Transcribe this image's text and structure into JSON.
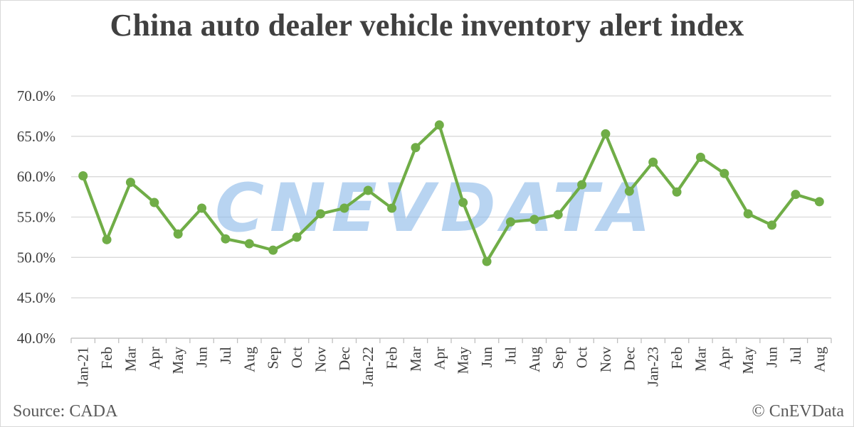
{
  "chart_data": {
    "type": "line",
    "title": "China auto dealer vehicle inventory alert index",
    "xlabel": "",
    "ylabel": "",
    "categories": [
      "Jan-21",
      "Feb",
      "Mar",
      "Apr",
      "May",
      "Jun",
      "Jul",
      "Aug",
      "Sep",
      "Oct",
      "Nov",
      "Dec",
      "Jan-22",
      "Feb",
      "Mar",
      "Apr",
      "May",
      "Jun",
      "Jul",
      "Aug",
      "Sep",
      "Oct",
      "Nov",
      "Dec",
      "Jan-23",
      "Feb",
      "Mar",
      "Apr",
      "May",
      "Jun",
      "Jul",
      "Aug"
    ],
    "series": [
      {
        "values": [
          60.1,
          52.2,
          59.3,
          56.8,
          52.9,
          56.1,
          52.3,
          51.7,
          50.9,
          52.5,
          55.4,
          56.1,
          58.3,
          56.1,
          63.6,
          66.4,
          56.8,
          49.5,
          54.4,
          54.7,
          55.3,
          59.0,
          65.3,
          58.2,
          61.8,
          58.1,
          62.4,
          60.4,
          55.4,
          54.0,
          57.8,
          56.9
        ],
        "color": "#70ad47"
      }
    ],
    "ylim": [
      40,
      70
    ],
    "yticks": [
      "70.0%",
      "65.0%",
      "60.0%",
      "55.0%",
      "50.0%",
      "45.0%",
      "40.0%"
    ],
    "ytick_values": [
      70,
      65,
      60,
      55,
      50,
      45,
      40
    ],
    "grid": true,
    "legend": "none"
  },
  "source": "Source: CADA",
  "copyright": "© CnEVData",
  "watermark": "CNEVDATA",
  "colors": {
    "line": "#70ad47",
    "grid": "#d9d9d9",
    "text": "#404040",
    "watermark": "#8ab8e8"
  }
}
